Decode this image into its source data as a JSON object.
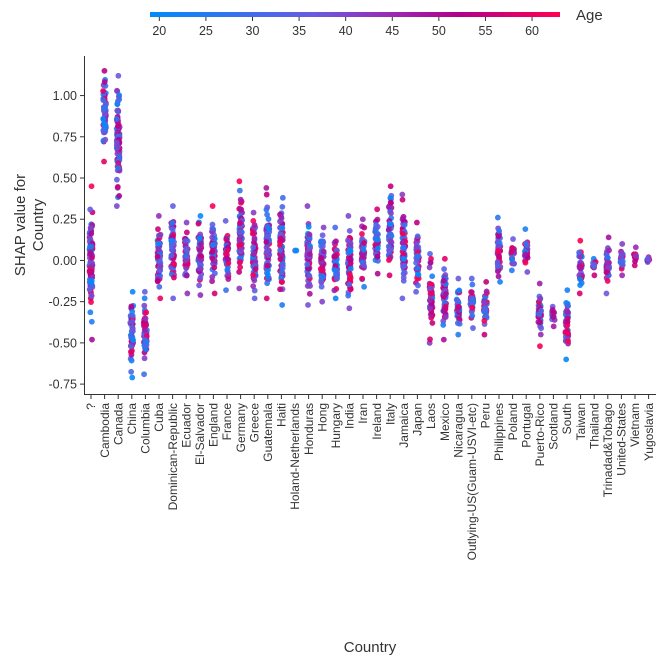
{
  "chart_data": {
    "type": "scatter",
    "title": "",
    "xlabel": "Country",
    "ylabel": [
      "SHAP value for",
      "Country"
    ],
    "ylim": [
      -0.81,
      1.24
    ],
    "yticks": [
      "-0.75",
      "-0.50",
      "-0.25",
      "0.00",
      "0.25",
      "0.50",
      "0.75",
      "1.00"
    ],
    "ytick_values": [
      -0.75,
      -0.5,
      -0.25,
      0,
      0.25,
      0.5,
      0.75,
      1.0
    ],
    "grid": false,
    "colorbar": {
      "label": "Age",
      "range": [
        19,
        63
      ],
      "ticks": [
        "20",
        "25",
        "30",
        "35",
        "40",
        "45",
        "50",
        "55",
        "60"
      ],
      "tick_values": [
        20,
        25,
        30,
        35,
        40,
        45,
        50,
        55,
        60
      ],
      "low_color": "#008bfb",
      "high_color": "#ff0052"
    },
    "categories": [
      "?",
      "Cambodia",
      "Canada",
      "China",
      "Columbia",
      "Cuba",
      "Dominican-Republic",
      "Ecuador",
      "El-Salvador",
      "England",
      "France",
      "Germany",
      "Greece",
      "Guatemala",
      "Haiti",
      "Holand-Netherlands",
      "Honduras",
      "Hong",
      "Hungary",
      "India",
      "Iran",
      "Ireland",
      "Italy",
      "Jamaica",
      "Japan",
      "Laos",
      "Mexico",
      "Nicaragua",
      "Outlying-US(Guam-USVI-etc)",
      "Peru",
      "Philippines",
      "Poland",
      "Portugal",
      "Puerto-Rico",
      "Scotland",
      "South",
      "Taiwan",
      "Thailand",
      "Trinadad&Tobago",
      "United-States",
      "Vietnam",
      "Yugoslavia"
    ],
    "shap_range": [
      [
        -0.48,
        0.45
      ],
      [
        0.6,
        1.15
      ],
      [
        0.33,
        1.12
      ],
      [
        -0.71,
        -0.19
      ],
      [
        -0.69,
        -0.19
      ],
      [
        -0.23,
        0.27
      ],
      [
        -0.23,
        0.33
      ],
      [
        -0.2,
        0.23
      ],
      [
        -0.21,
        0.27
      ],
      [
        -0.2,
        0.33
      ],
      [
        -0.18,
        0.24
      ],
      [
        -0.17,
        0.48
      ],
      [
        -0.23,
        0.29
      ],
      [
        -0.23,
        0.44
      ],
      [
        -0.27,
        0.38
      ],
      [
        0.06,
        0.06
      ],
      [
        -0.27,
        0.33
      ],
      [
        -0.25,
        0.2
      ],
      [
        -0.23,
        0.2
      ],
      [
        -0.29,
        0.27
      ],
      [
        -0.16,
        0.25
      ],
      [
        -0.08,
        0.31
      ],
      [
        -0.09,
        0.45
      ],
      [
        -0.23,
        0.4
      ],
      [
        -0.19,
        0.23
      ],
      [
        -0.5,
        0.04
      ],
      [
        -0.48,
        0.01
      ],
      [
        -0.45,
        -0.11
      ],
      [
        -0.41,
        -0.11
      ],
      [
        -0.45,
        -0.13
      ],
      [
        -0.13,
        0.26
      ],
      [
        -0.06,
        0.13
      ],
      [
        -0.07,
        0.19
      ],
      [
        -0.52,
        -0.14
      ],
      [
        -0.4,
        -0.28
      ],
      [
        -0.6,
        -0.18
      ],
      [
        -0.2,
        0.12
      ],
      [
        -0.09,
        0.01
      ],
      [
        -0.2,
        0.14
      ],
      [
        -0.09,
        0.1
      ],
      [
        -0.03,
        0.08
      ],
      [
        -0.01,
        0.02
      ]
    ]
  }
}
